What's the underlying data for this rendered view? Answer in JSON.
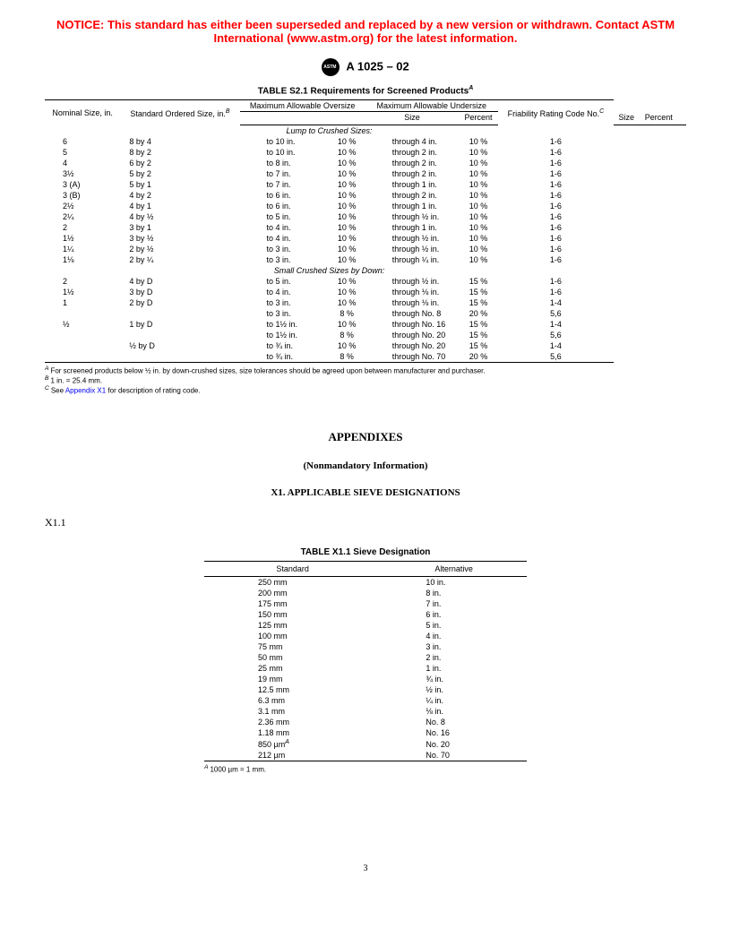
{
  "notice": "NOTICE: This standard has either been superseded and replaced by a new version or withdrawn.  Contact ASTM International (www.astm.org) for the latest information.",
  "docNumber": "A 1025 – 02",
  "tableS21": {
    "title": "TABLE S2.1  Requirements for Screened Products",
    "titleNote": "A",
    "headers": {
      "nominal": "Nominal Size, in.",
      "standard": "Standard Ordered Size, in.",
      "standardNote": "B",
      "oversize": "Maximum Allowable Oversize",
      "undersize": "Maximum Allowable Undersize",
      "size": "Size",
      "percent": "Percent",
      "friability": "Friability Rating Code No.",
      "friabilityNote": "C"
    },
    "section1": "Lump to Crushed Sizes:",
    "rows1": [
      {
        "n": "6",
        "s": "8 by 4",
        "os": "to 10 in.",
        "op": "10 %",
        "us": "through 4 in.",
        "up": "10 %",
        "f": "1-6"
      },
      {
        "n": "5",
        "s": "8 by 2",
        "os": "to 10 in.",
        "op": "10 %",
        "us": "through 2 in.",
        "up": "10 %",
        "f": "1-6"
      },
      {
        "n": "4",
        "s": "6 by 2",
        "os": "to 8 in.",
        "op": "10 %",
        "us": "through 2 in.",
        "up": "10 %",
        "f": "1-6"
      },
      {
        "n": "3½",
        "s": "5 by 2",
        "os": "to 7 in.",
        "op": "10 %",
        "us": "through 2 in.",
        "up": "10 %",
        "f": "1-6"
      },
      {
        "n": "3 (A)",
        "s": "5 by 1",
        "os": "to 7 in.",
        "op": "10 %",
        "us": "through 1 in.",
        "up": "10 %",
        "f": "1-6"
      },
      {
        "n": "3 (B)",
        "s": "4 by 2",
        "os": "to 6 in.",
        "op": "10 %",
        "us": "through 2 in.",
        "up": "10 %",
        "f": "1-6"
      },
      {
        "n": "2½",
        "s": "4 by 1",
        "os": "to 6 in.",
        "op": "10 %",
        "us": "through 1 in.",
        "up": "10 %",
        "f": "1-6"
      },
      {
        "n": "2¼",
        "s": "4 by ½",
        "os": "to 5 in.",
        "op": "10 %",
        "us": "through ½ in.",
        "up": "10 %",
        "f": "1-6"
      },
      {
        "n": "2",
        "s": "3 by 1",
        "os": "to 4 in.",
        "op": "10 %",
        "us": "through 1 in.",
        "up": "10 %",
        "f": "1-6"
      },
      {
        "n": "1½",
        "s": "3 by ½",
        "os": "to 4 in.",
        "op": "10 %",
        "us": "through ½ in.",
        "up": "10 %",
        "f": "1-6"
      },
      {
        "n": "1¼",
        "s": "2 by ½",
        "os": "to 3 in.",
        "op": "10 %",
        "us": "through ½ in.",
        "up": "10 %",
        "f": "1-6"
      },
      {
        "n": "1⅛",
        "s": "2 by ¼",
        "os": "to 3 in.",
        "op": "10 %",
        "us": "through ¼ in.",
        "up": "10 %",
        "f": "1-6"
      }
    ],
    "section2": "Small Crushed Sizes by Down:",
    "rows2": [
      {
        "n": "2",
        "s": "4 by D",
        "os": "to 5 in.",
        "op": "10 %",
        "us": "through ½ in.",
        "up": "15 %",
        "f": "1-6"
      },
      {
        "n": "1½",
        "s": "3 by D",
        "os": "to 4 in.",
        "op": "10 %",
        "us": "through ⅛ in.",
        "up": "15 %",
        "f": "1-6"
      },
      {
        "n": "1",
        "s": "2 by D",
        "os": "to 3 in.",
        "op": "10 %",
        "us": "through ⅛ in.",
        "up": "15 %",
        "f": "1-4"
      },
      {
        "n": "",
        "s": "",
        "os": "to 3 in.",
        "op": "8 %",
        "us": "through No. 8",
        "up": "20 %",
        "f": "5,6"
      },
      {
        "n": "½",
        "s": "1 by D",
        "os": "to 1½ in.",
        "op": "10 %",
        "us": "through No. 16",
        "up": "15 %",
        "f": "1-4"
      },
      {
        "n": "",
        "s": "",
        "os": "to 1½ in.",
        "op": "8 %",
        "us": "through No. 20",
        "up": "15 %",
        "f": "5,6"
      },
      {
        "n": "",
        "s": "½ by D",
        "os": "to ¾ in.",
        "op": "10 %",
        "us": "through No. 20",
        "up": "15 %",
        "f": "1-4"
      },
      {
        "n": "",
        "s": "",
        "os": "to ¾ in.",
        "op": "8 %",
        "us": "through No. 70",
        "up": "20 %",
        "f": "5,6"
      }
    ],
    "footnotes": {
      "A": "For screened products below ½ in. by down-crushed sizes, size tolerances should be agreed upon between manufacturer and purchaser.",
      "B": "1 in. = 25.4 mm.",
      "C_pre": "See ",
      "C_link": "Appendix X1",
      "C_post": " for description of rating code."
    }
  },
  "appendix": {
    "title": "APPENDIXES",
    "sub": "(Nonmandatory Information)",
    "section": "X1.  APPLICABLE SIEVE DESIGNATIONS",
    "x11": "X1.1"
  },
  "tableX11": {
    "title": "TABLE X1.1  Sieve Designation",
    "headers": {
      "std": "Standard",
      "alt": "Alternative"
    },
    "rows": [
      {
        "s": "250 mm",
        "a": "10 in."
      },
      {
        "s": "200 mm",
        "a": "8 in."
      },
      {
        "s": "175 mm",
        "a": "7 in."
      },
      {
        "s": "150 mm",
        "a": "6 in."
      },
      {
        "s": "125 mm",
        "a": "5 in."
      },
      {
        "s": "100 mm",
        "a": "4 in."
      },
      {
        "s": "75 mm",
        "a": "3 in."
      },
      {
        "s": "50 mm",
        "a": "2 in."
      },
      {
        "s": "25 mm",
        "a": "1 in."
      },
      {
        "s": "19 mm",
        "a": "¾ in."
      },
      {
        "s": "12.5 mm",
        "a": "½ in."
      },
      {
        "s": "6.3 mm",
        "a": "¼ in."
      },
      {
        "s": "3.1 mm",
        "a": "⅛ in."
      },
      {
        "s": "2.36 mm",
        "a": "No. 8"
      },
      {
        "s": "1.18 mm",
        "a": "No. 16"
      },
      {
        "s": "850 µm",
        "sNote": "A",
        "a": "No. 20"
      },
      {
        "s": "212 µm",
        "a": "No. 70"
      }
    ],
    "footnote": {
      "A": "1000 µm = 1 mm."
    }
  },
  "pageNumber": "3"
}
